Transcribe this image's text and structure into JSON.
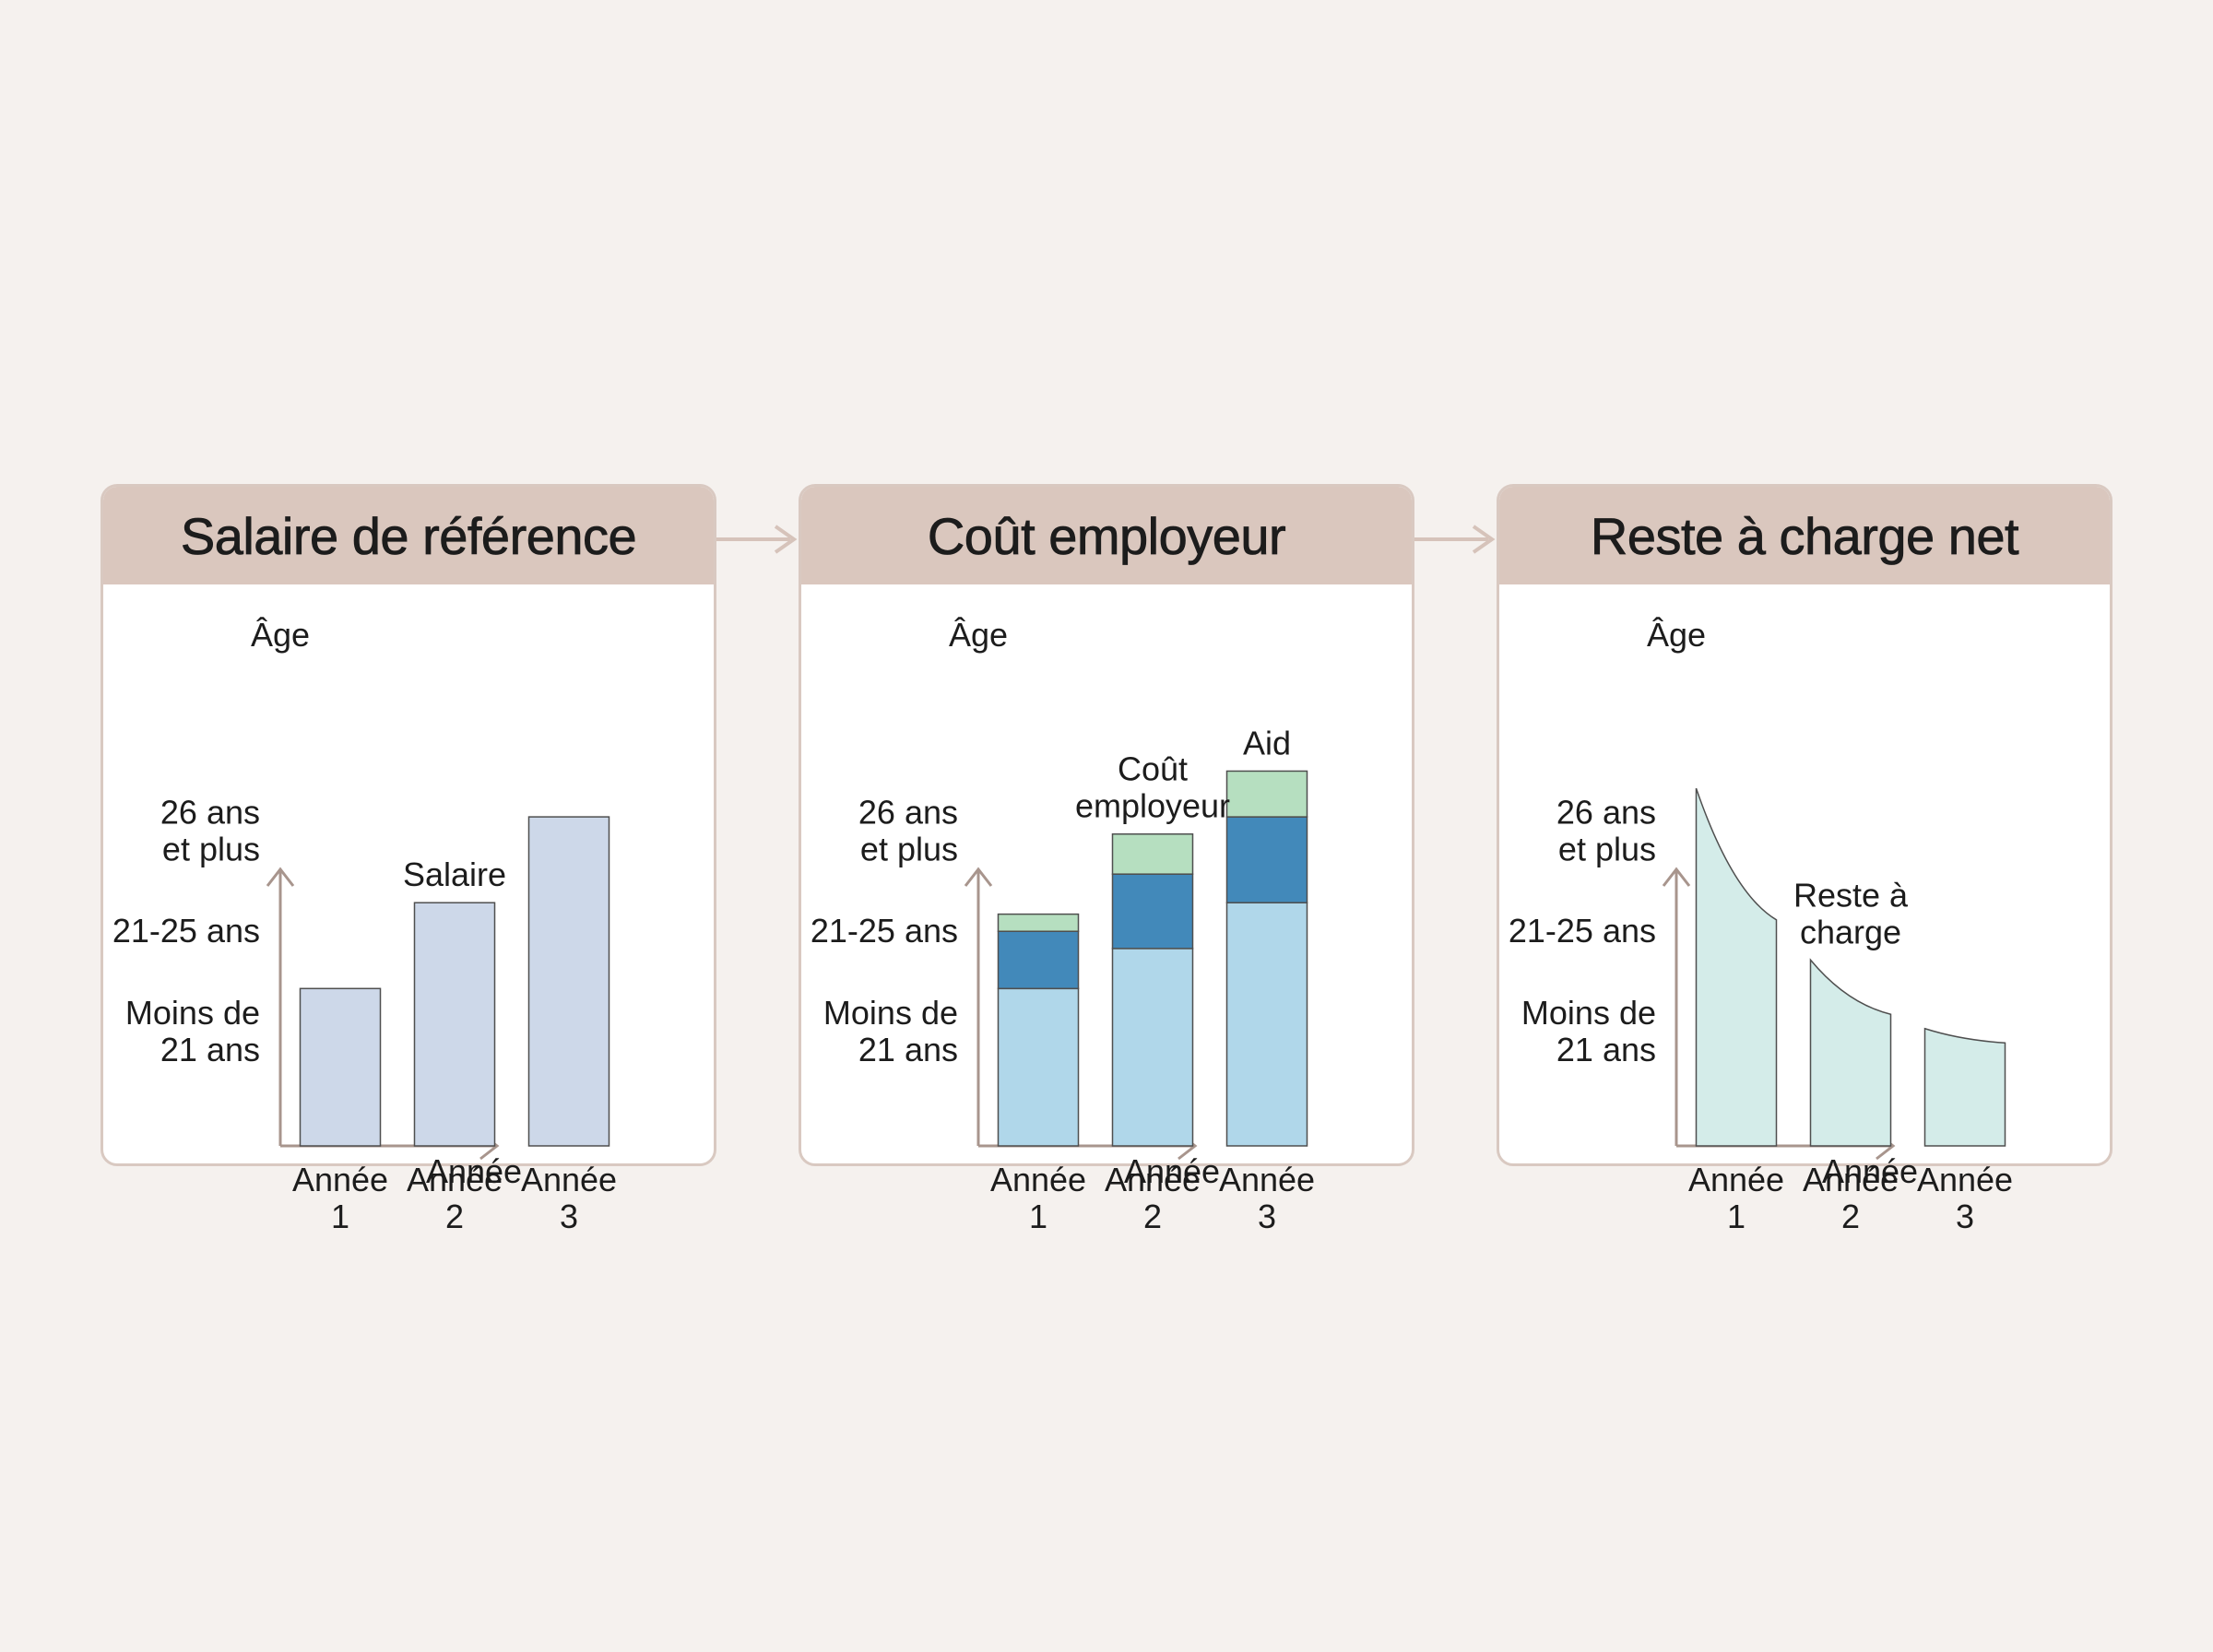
{
  "colors": {
    "background": "#f5f1ee",
    "header": "#dac7be",
    "border": "#d9c9c1",
    "axis": "#a8958d",
    "salary_bar": "#cdd8e9",
    "cost_base": "#b0d7ea",
    "cost_charges": "#4289ba",
    "aid": "#b6dfc0",
    "remaining": "#d4ece9"
  },
  "chart_data": [
    {
      "type": "bar",
      "title": "Salaire de référence",
      "ylabel": "Âge",
      "xlabel": "Année",
      "y_ticks": [
        {
          "label": [
            "Moins de",
            "21 ans"
          ],
          "value": 0.4
        },
        {
          "label": [
            "21-25 ans"
          ],
          "value": 0.75
        },
        {
          "label": [
            "26 ans",
            "et plus"
          ],
          "value": 1.1
        }
      ],
      "categories": [
        [
          "Année",
          "1"
        ],
        [
          "Année",
          "2"
        ],
        [
          "Année",
          "3"
        ]
      ],
      "series": [
        {
          "name": "Salaire",
          "values": [
            0.55,
            0.85,
            1.15
          ]
        }
      ],
      "annotations": [
        {
          "text": [
            "Salaire"
          ],
          "category": 1
        }
      ],
      "ylim": [
        0,
        1.45
      ],
      "grid": false
    },
    {
      "type": "bar",
      "stacked": true,
      "title": "Coût employeur",
      "ylabel": "Âge",
      "xlabel": "Année",
      "y_ticks": [
        {
          "label": [
            "Moins de",
            "21 ans"
          ],
          "value": 0.4
        },
        {
          "label": [
            "21-25 ans"
          ],
          "value": 0.75
        },
        {
          "label": [
            "26 ans",
            "et plus"
          ],
          "value": 1.1
        }
      ],
      "categories": [
        [
          "Année",
          "1"
        ],
        [
          "Année",
          "2"
        ],
        [
          "Année",
          "3"
        ]
      ],
      "series": [
        {
          "values": [
            0.55,
            0.69,
            0.85
          ]
        },
        {
          "values": [
            0.2,
            0.26,
            0.3
          ]
        },
        {
          "values": [
            0.06,
            0.14,
            0.16
          ]
        }
      ],
      "annotations": [
        {
          "text": [
            "Coût",
            "employeur"
          ],
          "category": 1
        },
        {
          "text": [
            "Aid"
          ],
          "category": 2
        }
      ],
      "ylim": [
        0,
        1.45
      ],
      "grid": false
    },
    {
      "type": "area",
      "title": "Reste à charge net",
      "ylabel": "Âge",
      "xlabel": "Année",
      "y_ticks": [
        {
          "label": [
            "Moins de",
            "21 ans"
          ],
          "value": 0.4
        },
        {
          "label": [
            "21-25 ans"
          ],
          "value": 0.75
        },
        {
          "label": [
            "26 ans",
            "et plus"
          ],
          "value": 1.1
        }
      ],
      "categories": [
        [
          "Année",
          "1"
        ],
        [
          "Année",
          "2"
        ],
        [
          "Année",
          "3"
        ]
      ],
      "segments": [
        {
          "category": 0,
          "start": 1.25,
          "end": 0.79
        },
        {
          "category": 1,
          "start": 0.65,
          "end": 0.46
        },
        {
          "category": 2,
          "start": 0.41,
          "end": 0.36
        }
      ],
      "annotations": [
        {
          "text": [
            "Reste à",
            "charge"
          ],
          "category": 1
        }
      ],
      "ylim": [
        0,
        1.45
      ],
      "grid": false
    }
  ]
}
